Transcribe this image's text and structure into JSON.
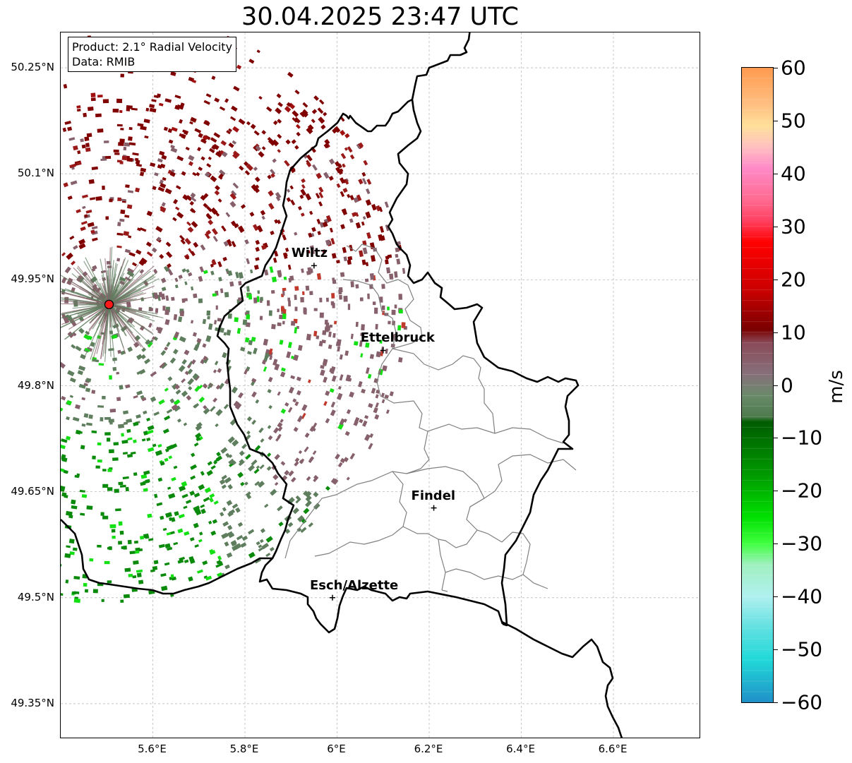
{
  "title": "30.04.2025 23:47 UTC",
  "info": {
    "product": "Product: 2.1° Radial Velocity",
    "data": "Data: RMIB"
  },
  "lat_ticks": [
    {
      "value": 50.25,
      "label": "50.25°N"
    },
    {
      "value": 50.1,
      "label": "50.1°N"
    },
    {
      "value": 49.95,
      "label": "49.95°N"
    },
    {
      "value": 49.8,
      "label": "49.8°N"
    },
    {
      "value": 49.65,
      "label": "49.65°N"
    },
    {
      "value": 49.5,
      "label": "49.5°N"
    },
    {
      "value": 49.35,
      "label": "49.35°N"
    }
  ],
  "lon_ticks": [
    {
      "value": 5.6,
      "label": "5.6°E"
    },
    {
      "value": 5.8,
      "label": "5.8°E"
    },
    {
      "value": 6.0,
      "label": "6°E"
    },
    {
      "value": 6.2,
      "label": "6.2°E"
    },
    {
      "value": 6.4,
      "label": "6.4°E"
    },
    {
      "value": 6.6,
      "label": "6.6°E"
    }
  ],
  "extent": {
    "lon_min": 5.4,
    "lon_max": 6.79,
    "lat_min": 49.3,
    "lat_max": 50.3
  },
  "cities": [
    {
      "name": "Wiltz",
      "lon": 5.95,
      "lat": 49.97
    },
    {
      "name": "Ettelbruck",
      "lon": 6.1,
      "lat": 49.85
    },
    {
      "name": "Findel",
      "lon": 6.21,
      "lat": 49.627
    },
    {
      "name": "Esch/Alzette",
      "lon": 5.99,
      "lat": 49.5
    }
  ],
  "radar": {
    "lon": 5.505,
    "lat": 49.915
  },
  "colorbar": {
    "unit": "m/s",
    "min": -60,
    "max": 60,
    "ticks": [
      {
        "value": 60,
        "label": "60"
      },
      {
        "value": 50,
        "label": "50"
      },
      {
        "value": 40,
        "label": "40"
      },
      {
        "value": 30,
        "label": "30"
      },
      {
        "value": 20,
        "label": "20"
      },
      {
        "value": 10,
        "label": "10"
      },
      {
        "value": 0,
        "label": "0"
      },
      {
        "value": -10,
        "label": "−10"
      },
      {
        "value": -20,
        "label": "−20"
      },
      {
        "value": -30,
        "label": "−30"
      },
      {
        "value": -40,
        "label": "−40"
      },
      {
        "value": -50,
        "label": "−50"
      },
      {
        "value": -60,
        "label": "−60"
      }
    ]
  },
  "colors": {
    "receding": "#800000",
    "near_zero_pos": "#86606a",
    "near_zero_neg": "#5e7e5e",
    "approaching": "#0a8a0a",
    "bright_green": "#13e013",
    "border": "#000000",
    "district": "#808080"
  }
}
